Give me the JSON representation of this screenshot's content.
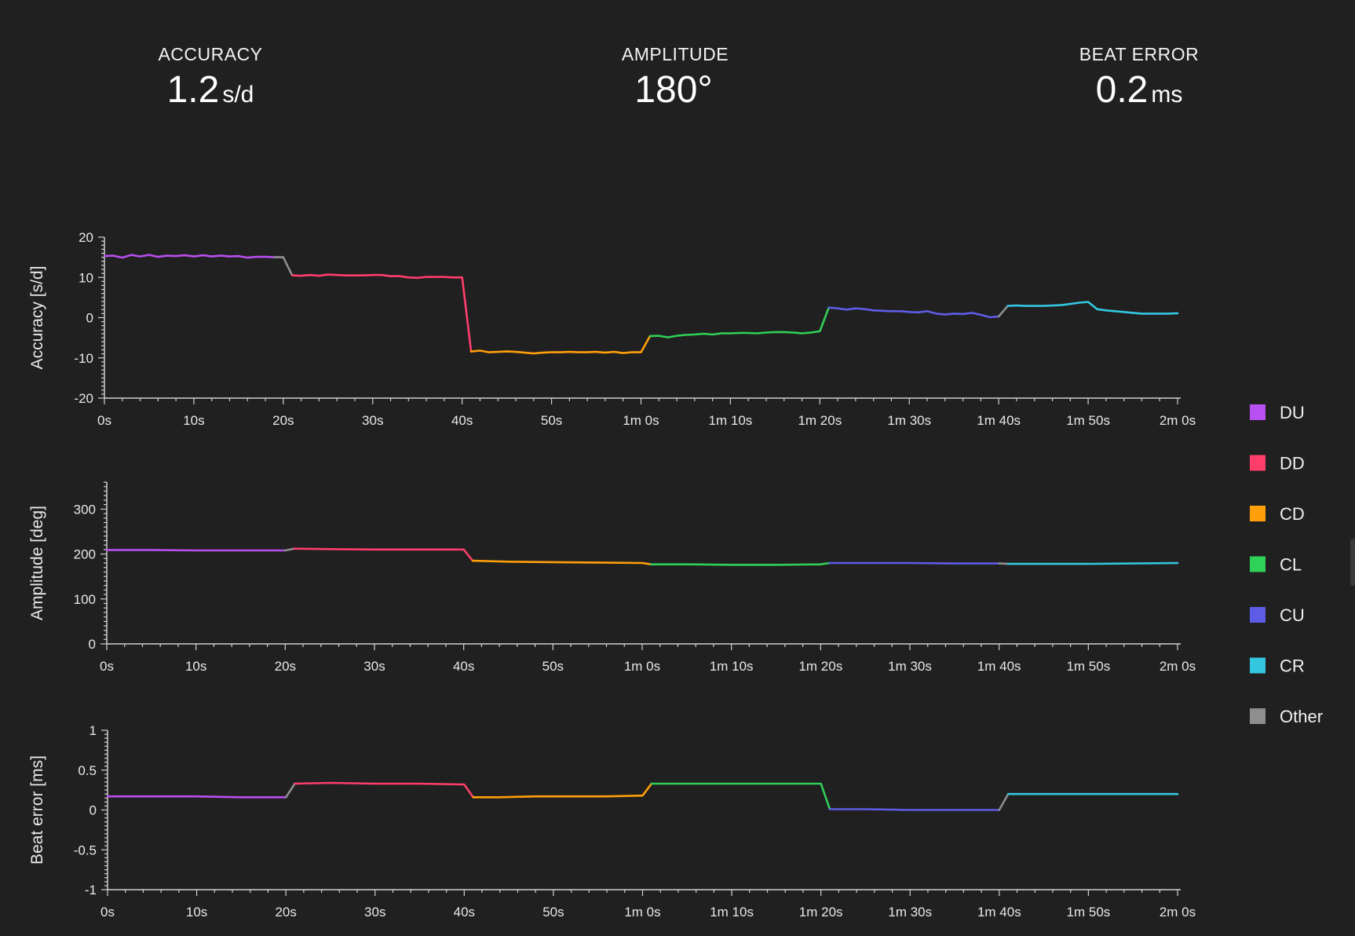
{
  "metrics": {
    "accuracy": {
      "label": "ACCURACY",
      "value": "1.2",
      "unit": "s/d"
    },
    "amplitude": {
      "label": "AMPLITUDE",
      "value": "180°",
      "unit": ""
    },
    "beat_error": {
      "label": "BEAT ERROR",
      "value": "0.2",
      "unit": "ms"
    }
  },
  "legend": [
    {
      "name": "DU",
      "color": "#b84ff0"
    },
    {
      "name": "DD",
      "color": "#ff3d6b"
    },
    {
      "name": "CD",
      "color": "#ff9f0a"
    },
    {
      "name": "CL",
      "color": "#2fd158"
    },
    {
      "name": "CU",
      "color": "#5e5ce6"
    },
    {
      "name": "CR",
      "color": "#33c7e0"
    },
    {
      "name": "Other",
      "color": "#8e8e8e"
    }
  ],
  "chart_data": [
    {
      "type": "line",
      "ylabel": "Accuracy [s/d]",
      "xlim": [
        0,
        120
      ],
      "ylim": [
        -20,
        20
      ],
      "x_ticks": [
        "0s",
        "10s",
        "20s",
        "30s",
        "40s",
        "50s",
        "1m 0s",
        "1m 10s",
        "1m 20s",
        "1m 30s",
        "1m 40s",
        "1m 50s",
        "2m 0s"
      ],
      "y_ticks": [
        "20",
        "10",
        "0",
        "-10",
        "-20"
      ],
      "y_tick_values": [
        20,
        10,
        0,
        -10,
        -20
      ],
      "series": [
        {
          "name": "DU",
          "x": [
            0,
            1,
            2,
            3,
            4,
            5,
            6,
            7,
            8,
            9,
            10,
            11,
            12,
            13,
            14,
            15,
            16,
            17,
            18,
            19,
            20
          ],
          "y": [
            15.3,
            15.4,
            14.9,
            15.6,
            15.2,
            15.6,
            15.1,
            15.4,
            15.3,
            15.5,
            15.2,
            15.5,
            15.2,
            15.4,
            15.2,
            15.3,
            14.9,
            15.1,
            15.1,
            15.0,
            15.0
          ]
        },
        {
          "name": "Other",
          "x": [
            19,
            20,
            21
          ],
          "y": [
            15.0,
            15.0,
            10.5
          ]
        },
        {
          "name": "DD",
          "x": [
            21,
            22,
            23,
            24,
            25,
            26,
            27,
            28,
            29,
            30,
            31,
            32,
            33,
            34,
            35,
            36,
            37,
            38,
            39,
            40,
            41
          ],
          "y": [
            10.5,
            10.4,
            10.6,
            10.4,
            10.7,
            10.6,
            10.5,
            10.5,
            10.5,
            10.6,
            10.6,
            10.3,
            10.3,
            10.0,
            9.9,
            10.1,
            10.1,
            10.1,
            10.0,
            10.0,
            -8.4
          ]
        },
        {
          "name": "CD",
          "x": [
            41,
            42,
            43,
            44,
            45,
            46,
            47,
            48,
            49,
            50,
            51,
            52,
            53,
            54,
            55,
            56,
            57,
            58,
            59,
            60,
            61
          ],
          "y": [
            -8.4,
            -8.2,
            -8.6,
            -8.5,
            -8.4,
            -8.5,
            -8.7,
            -8.9,
            -8.7,
            -8.6,
            -8.6,
            -8.5,
            -8.6,
            -8.6,
            -8.5,
            -8.7,
            -8.5,
            -8.8,
            -8.6,
            -8.6,
            -4.6
          ]
        },
        {
          "name": "CL",
          "x": [
            61,
            62,
            63,
            64,
            65,
            66,
            67,
            68,
            69,
            70,
            71,
            72,
            73,
            74,
            75,
            76,
            77,
            78,
            79,
            80,
            81
          ],
          "y": [
            -4.6,
            -4.5,
            -4.9,
            -4.5,
            -4.3,
            -4.2,
            -4.0,
            -4.2,
            -3.9,
            -3.9,
            -3.8,
            -3.8,
            -3.9,
            -3.7,
            -3.6,
            -3.6,
            -3.7,
            -3.9,
            -3.7,
            -3.4,
            2.5
          ]
        },
        {
          "name": "CU",
          "x": [
            81,
            82,
            83,
            84,
            85,
            86,
            87,
            88,
            89,
            90,
            91,
            92,
            93,
            94,
            95,
            96,
            97,
            98,
            99,
            100
          ],
          "y": [
            2.5,
            2.3,
            2.0,
            2.3,
            2.1,
            1.8,
            1.7,
            1.6,
            1.6,
            1.4,
            1.3,
            1.6,
            1.0,
            0.8,
            1.0,
            0.9,
            1.2,
            0.7,
            0.1,
            0.3
          ]
        },
        {
          "name": "Other",
          "x": [
            100,
            101
          ],
          "y": [
            0.3,
            2.9
          ]
        },
        {
          "name": "CR",
          "x": [
            101,
            102,
            103,
            104,
            105,
            106,
            107,
            108,
            109,
            110,
            111,
            112,
            113,
            114,
            115,
            116,
            117,
            118,
            119,
            120
          ],
          "y": [
            2.9,
            3.0,
            2.9,
            2.9,
            2.9,
            3.0,
            3.1,
            3.4,
            3.7,
            3.9,
            2.1,
            1.8,
            1.6,
            1.4,
            1.2,
            1.0,
            1.0,
            1.0,
            1.0,
            1.1
          ]
        }
      ]
    },
    {
      "type": "line",
      "ylabel": "Amplitude [deg]",
      "xlim": [
        0,
        120
      ],
      "ylim": [
        0,
        360
      ],
      "x_ticks": [
        "0s",
        "10s",
        "20s",
        "30s",
        "40s",
        "50s",
        "1m 0s",
        "1m 10s",
        "1m 20s",
        "1m 30s",
        "1m 40s",
        "1m 50s",
        "2m 0s"
      ],
      "y_ticks": [
        "300",
        "200",
        "100",
        "0"
      ],
      "y_tick_values": [
        300,
        200,
        100,
        0
      ],
      "series": [
        {
          "name": "DU",
          "x": [
            0,
            5,
            10,
            15,
            20
          ],
          "y": [
            209,
            209,
            208,
            208,
            208
          ]
        },
        {
          "name": "Other",
          "x": [
            20,
            21
          ],
          "y": [
            208,
            212
          ]
        },
        {
          "name": "DD",
          "x": [
            21,
            25,
            30,
            35,
            40,
            41
          ],
          "y": [
            212,
            211,
            210,
            210,
            210,
            185
          ]
        },
        {
          "name": "CD",
          "x": [
            41,
            45,
            50,
            55,
            60,
            61
          ],
          "y": [
            185,
            183,
            182,
            181,
            180,
            177
          ]
        },
        {
          "name": "CL",
          "x": [
            61,
            65,
            70,
            75,
            80,
            81
          ],
          "y": [
            177,
            177,
            176,
            176,
            177,
            180
          ]
        },
        {
          "name": "CU",
          "x": [
            81,
            85,
            90,
            95,
            100
          ],
          "y": [
            180,
            180,
            180,
            179,
            179
          ]
        },
        {
          "name": "Other",
          "x": [
            100,
            101
          ],
          "y": [
            179,
            178
          ]
        },
        {
          "name": "CR",
          "x": [
            101,
            105,
            110,
            115,
            120
          ],
          "y": [
            178,
            178,
            178,
            179,
            180
          ]
        }
      ]
    },
    {
      "type": "line",
      "ylabel": "Beat error [ms]",
      "xlim": [
        0,
        120
      ],
      "ylim": [
        -1,
        1
      ],
      "x_ticks": [
        "0s",
        "10s",
        "20s",
        "30s",
        "40s",
        "50s",
        "1m 0s",
        "1m 10s",
        "1m 20s",
        "1m 30s",
        "1m 40s",
        "1m 50s",
        "2m 0s"
      ],
      "y_ticks": [
        "1",
        "0.5",
        "0",
        "-0.5",
        "-1"
      ],
      "y_tick_values": [
        1,
        0.5,
        0,
        -0.5,
        -1
      ],
      "series": [
        {
          "name": "DU",
          "x": [
            0,
            5,
            10,
            15,
            20
          ],
          "y": [
            0.17,
            0.17,
            0.17,
            0.16,
            0.16
          ]
        },
        {
          "name": "Other",
          "x": [
            20,
            21
          ],
          "y": [
            0.16,
            0.33
          ]
        },
        {
          "name": "DD",
          "x": [
            21,
            25,
            30,
            35,
            40,
            41
          ],
          "y": [
            0.33,
            0.34,
            0.33,
            0.33,
            0.32,
            0.16
          ]
        },
        {
          "name": "CD",
          "x": [
            41,
            44,
            48,
            52,
            56,
            60,
            61
          ],
          "y": [
            0.16,
            0.16,
            0.17,
            0.17,
            0.17,
            0.18,
            0.33
          ]
        },
        {
          "name": "CL",
          "x": [
            61,
            65,
            70,
            75,
            80,
            81
          ],
          "y": [
            0.33,
            0.33,
            0.33,
            0.33,
            0.33,
            0.01
          ]
        },
        {
          "name": "CU",
          "x": [
            81,
            85,
            90,
            95,
            100
          ],
          "y": [
            0.01,
            0.01,
            0.0,
            0.0,
            0.0
          ]
        },
        {
          "name": "Other",
          "x": [
            100,
            101
          ],
          "y": [
            0.0,
            0.2
          ]
        },
        {
          "name": "CR",
          "x": [
            101,
            105,
            110,
            115,
            120
          ],
          "y": [
            0.2,
            0.2,
            0.2,
            0.2,
            0.2
          ]
        }
      ]
    }
  ]
}
